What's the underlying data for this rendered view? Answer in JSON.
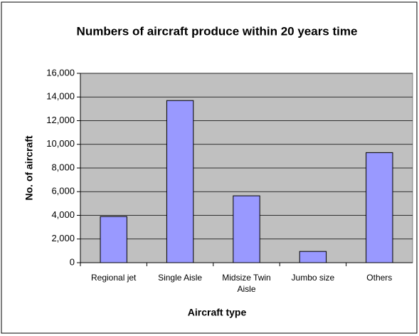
{
  "chart_data": {
    "type": "bar",
    "title": "Numbers of aircraft produce within 20 years time",
    "x_label": "Aircraft type",
    "y_label": "No. of aircraft",
    "categories": [
      "Regional jet",
      "Single Aisle",
      "Midsize Twin Aisle",
      "Jumbo size",
      "Others"
    ],
    "values": [
      3900,
      13700,
      5650,
      950,
      9300
    ],
    "color": "#9999ff",
    "ylim": [
      0,
      16000
    ],
    "yticks": [
      0,
      {
        "value": 2000,
        "label": "2,000"
      },
      {
        "value": 4000,
        "label": "4,000"
      },
      {
        "value": 6000,
        "label": "6,000"
      },
      {
        "value": 8000,
        "label": "8,000"
      },
      {
        "value": 10000,
        "label": "10,000"
      },
      {
        "value": 12000,
        "label": "12,000"
      },
      {
        "value": 14000,
        "label": "14,000"
      },
      {
        "value": 16000,
        "label": "16,000"
      }
    ],
    "grid": true
  }
}
